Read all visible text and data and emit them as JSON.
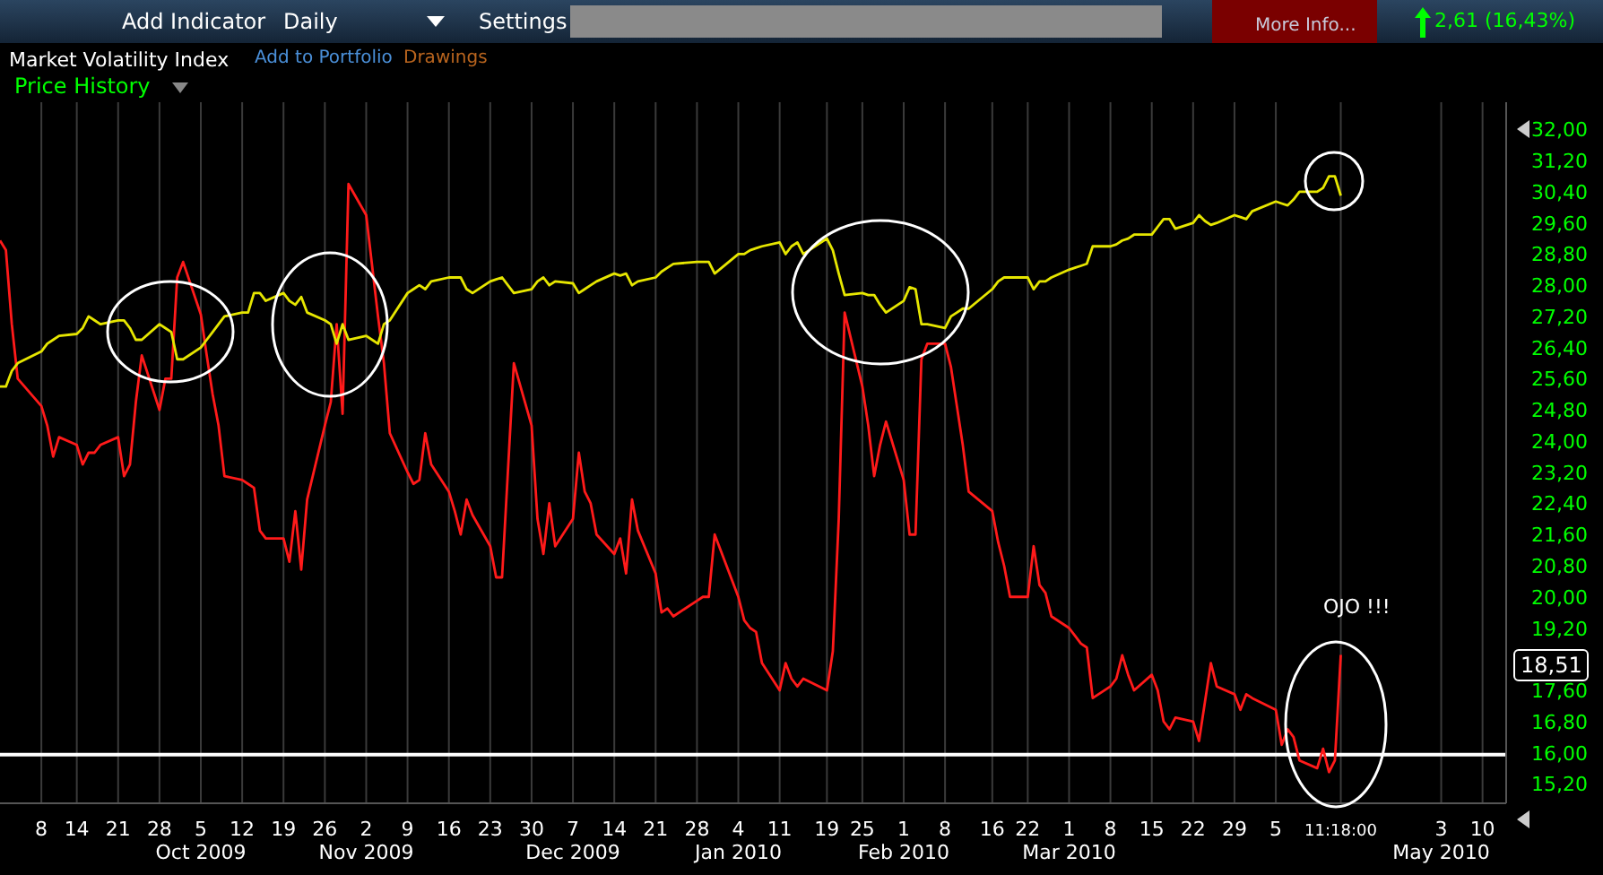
{
  "chart_data": {
    "type": "line",
    "title": "Market Volatility Index",
    "subtitle": "Price History",
    "x": [
      "2009-09-01",
      "2009-09-02",
      "2009-09-03",
      "2009-09-04",
      "2009-09-08",
      "2009-09-09",
      "2009-09-10",
      "2009-09-11",
      "2009-09-14",
      "2009-09-15",
      "2009-09-16",
      "2009-09-17",
      "2009-09-18",
      "2009-09-21",
      "2009-09-22",
      "2009-09-23",
      "2009-09-24",
      "2009-09-25",
      "2009-09-28",
      "2009-09-29",
      "2009-09-30",
      "2009-10-01",
      "2009-10-02",
      "2009-10-05",
      "2009-10-06",
      "2009-10-07",
      "2009-10-08",
      "2009-10-09",
      "2009-10-12",
      "2009-10-13",
      "2009-10-14",
      "2009-10-15",
      "2009-10-16",
      "2009-10-19",
      "2009-10-20",
      "2009-10-21",
      "2009-10-22",
      "2009-10-23",
      "2009-10-26",
      "2009-10-27",
      "2009-10-28",
      "2009-10-29",
      "2009-10-30",
      "2009-11-02",
      "2009-11-03",
      "2009-11-04",
      "2009-11-05",
      "2009-11-06",
      "2009-11-09",
      "2009-11-10",
      "2009-11-11",
      "2009-11-12",
      "2009-11-13",
      "2009-11-16",
      "2009-11-17",
      "2009-11-18",
      "2009-11-19",
      "2009-11-20",
      "2009-11-23",
      "2009-11-24",
      "2009-11-25",
      "2009-11-27",
      "2009-11-30",
      "2009-12-01",
      "2009-12-02",
      "2009-12-03",
      "2009-12-04",
      "2009-12-07",
      "2009-12-08",
      "2009-12-09",
      "2009-12-10",
      "2009-12-11",
      "2009-12-14",
      "2009-12-15",
      "2009-12-16",
      "2009-12-17",
      "2009-12-18",
      "2009-12-21",
      "2009-12-22",
      "2009-12-23",
      "2009-12-24",
      "2009-12-28",
      "2009-12-29",
      "2009-12-30",
      "2009-12-31",
      "2010-01-04",
      "2010-01-05",
      "2010-01-06",
      "2010-01-07",
      "2010-01-08",
      "2010-01-11",
      "2010-01-12",
      "2010-01-13",
      "2010-01-14",
      "2010-01-15",
      "2010-01-19",
      "2010-01-20",
      "2010-01-21",
      "2010-01-22",
      "2010-01-25",
      "2010-01-26",
      "2010-01-27",
      "2010-01-28",
      "2010-01-29",
      "2010-02-01",
      "2010-02-02",
      "2010-02-03",
      "2010-02-04",
      "2010-02-05",
      "2010-02-08",
      "2010-02-09",
      "2010-02-10",
      "2010-02-11",
      "2010-02-12",
      "2010-02-16",
      "2010-02-17",
      "2010-02-18",
      "2010-02-19",
      "2010-02-22",
      "2010-02-23",
      "2010-02-24",
      "2010-02-25",
      "2010-02-26",
      "2010-03-01",
      "2010-03-02",
      "2010-03-03",
      "2010-03-04",
      "2010-03-05",
      "2010-03-08",
      "2010-03-09",
      "2010-03-10",
      "2010-03-11",
      "2010-03-12",
      "2010-03-15",
      "2010-03-16",
      "2010-03-17",
      "2010-03-18",
      "2010-03-19",
      "2010-03-22",
      "2010-03-23",
      "2010-03-24",
      "2010-03-25",
      "2010-03-26",
      "2010-03-29",
      "2010-03-30",
      "2010-03-31",
      "2010-04-01",
      "2010-04-05",
      "2010-04-06",
      "2010-04-07",
      "2010-04-08",
      "2010-04-09",
      "2010-04-12",
      "2010-04-13",
      "2010-04-14",
      "2010-04-15",
      "2010-04-16"
    ],
    "series": [
      {
        "color": "#ff1a1a",
        "values": [
          29.15,
          28.9,
          27.0,
          25.6,
          24.9,
          24.4,
          23.6,
          24.1,
          23.9,
          23.4,
          23.7,
          23.7,
          23.9,
          24.1,
          23.1,
          23.4,
          25.0,
          26.2,
          24.8,
          25.6,
          25.6,
          28.2,
          28.6,
          27.25,
          26.2,
          25.2,
          24.4,
          23.1,
          23.0,
          22.9,
          22.8,
          21.7,
          21.5,
          21.5,
          20.9,
          22.2,
          20.7,
          22.5,
          24.4,
          25.0,
          27.0,
          24.7,
          30.6,
          29.8,
          28.5,
          27.2,
          26.0,
          24.2,
          23.2,
          22.9,
          23.0,
          24.2,
          23.4,
          22.7,
          22.2,
          21.6,
          22.5,
          22.1,
          21.3,
          20.5,
          20.5,
          26.0,
          24.4,
          22.0,
          21.1,
          22.4,
          21.3,
          22.0,
          23.7,
          22.7,
          22.4,
          21.6,
          21.1,
          21.5,
          20.6,
          22.5,
          21.7,
          20.6,
          19.6,
          19.7,
          19.5,
          19.9,
          20.0,
          20.0,
          21.6,
          20.0,
          19.4,
          19.2,
          19.1,
          18.3,
          17.6,
          18.3,
          17.9,
          17.7,
          17.9,
          17.6,
          18.6,
          22.0,
          27.3,
          25.4,
          24.4,
          23.1,
          23.9,
          24.5,
          23.0,
          21.6,
          21.6,
          26.1,
          26.5,
          26.5,
          25.9,
          24.9,
          23.9,
          22.7,
          22.2,
          21.4,
          20.8,
          20.0,
          20.0,
          21.3,
          20.3,
          20.1,
          19.5,
          19.2,
          19.0,
          18.8,
          18.7,
          17.4,
          17.7,
          17.9,
          18.5,
          18.0,
          17.6,
          18.0,
          17.6,
          16.8,
          16.6,
          16.9,
          16.8,
          16.3,
          17.3,
          18.3,
          17.7,
          17.5,
          17.1,
          17.5,
          17.4,
          17.1,
          16.2,
          16.6,
          16.4,
          15.8,
          15.6,
          16.1,
          15.5,
          15.8,
          18.51
        ]
      },
      {
        "color": "#e6e600",
        "values": [
          25.4,
          25.4,
          25.8,
          26.0,
          26.3,
          26.5,
          26.6,
          26.7,
          26.75,
          26.9,
          27.2,
          27.1,
          27.0,
          27.1,
          27.1,
          26.9,
          26.6,
          26.6,
          27.0,
          26.9,
          26.8,
          26.1,
          26.1,
          26.4,
          26.6,
          26.8,
          27.0,
          27.2,
          27.3,
          27.3,
          27.8,
          27.8,
          27.6,
          27.8,
          27.6,
          27.5,
          27.7,
          27.3,
          27.1,
          27.0,
          26.5,
          27.0,
          26.6,
          26.7,
          26.6,
          26.5,
          27.0,
          27.1,
          27.8,
          27.9,
          28.0,
          27.9,
          28.1,
          28.2,
          28.2,
          28.2,
          27.9,
          27.8,
          28.1,
          28.15,
          28.2,
          27.8,
          27.9,
          28.1,
          28.2,
          28.0,
          28.1,
          28.05,
          27.8,
          27.9,
          28.0,
          28.1,
          28.3,
          28.25,
          28.3,
          28.0,
          28.1,
          28.2,
          28.35,
          28.45,
          28.55,
          28.6,
          28.6,
          28.6,
          28.3,
          28.8,
          28.8,
          28.9,
          28.95,
          29.0,
          29.1,
          28.8,
          29.0,
          29.1,
          28.8,
          29.2,
          28.9,
          28.3,
          27.75,
          27.8,
          27.75,
          27.75,
          27.5,
          27.3,
          27.6,
          27.95,
          27.9,
          27.0,
          27.0,
          26.9,
          27.2,
          27.3,
          27.4,
          27.4,
          27.9,
          28.1,
          28.2,
          28.2,
          28.2,
          27.9,
          28.1,
          28.1,
          28.2,
          28.4,
          28.45,
          28.5,
          28.55,
          29.0,
          29.0,
          29.05,
          29.15,
          29.2,
          29.3,
          29.3,
          29.5,
          29.7,
          29.7,
          29.45,
          29.6,
          29.8,
          29.65,
          29.55,
          29.6,
          29.8,
          29.75,
          29.7,
          29.9,
          30.15,
          30.1,
          30.05,
          30.2,
          30.4,
          30.4,
          30.5,
          30.8,
          30.8,
          30.3
        ]
      }
    ],
    "xlim": [
      "2009-09-01",
      "2010-05-14"
    ],
    "xticks": [
      {
        "value": "2009-09-08",
        "label": "8"
      },
      {
        "value": "2009-09-14",
        "label": "14"
      },
      {
        "value": "2009-09-21",
        "label": "21"
      },
      {
        "value": "2009-09-28",
        "label": "28"
      },
      {
        "value": "2009-10-05",
        "label": "5\nOct 2009"
      },
      {
        "value": "2009-10-12",
        "label": "12"
      },
      {
        "value": "2009-10-19",
        "label": "19"
      },
      {
        "value": "2009-10-26",
        "label": "26"
      },
      {
        "value": "2009-11-02",
        "label": "2\nNov 2009"
      },
      {
        "value": "2009-11-09",
        "label": "9"
      },
      {
        "value": "2009-11-16",
        "label": "16"
      },
      {
        "value": "2009-11-23",
        "label": "23"
      },
      {
        "value": "2009-11-30",
        "label": "30"
      },
      {
        "value": "2009-12-07",
        "label": "7\nDec 2009"
      },
      {
        "value": "2009-12-14",
        "label": "14"
      },
      {
        "value": "2009-12-21",
        "label": "21"
      },
      {
        "value": "2009-12-28",
        "label": "28"
      },
      {
        "value": "2010-01-04",
        "label": "4\nJan 2010"
      },
      {
        "value": "2010-01-11",
        "label": "11"
      },
      {
        "value": "2010-01-19",
        "label": "19"
      },
      {
        "value": "2010-01-25",
        "label": "25"
      },
      {
        "value": "2010-02-01",
        "label": "1\nFeb 2010"
      },
      {
        "value": "2010-02-08",
        "label": "8"
      },
      {
        "value": "2010-02-16",
        "label": "16"
      },
      {
        "value": "2010-02-22",
        "label": "22"
      },
      {
        "value": "2010-03-01",
        "label": "1\nMar 2010"
      },
      {
        "value": "2010-03-08",
        "label": "8"
      },
      {
        "value": "2010-03-15",
        "label": "15"
      },
      {
        "value": "2010-03-22",
        "label": "22"
      },
      {
        "value": "2010-03-29",
        "label": "29"
      },
      {
        "value": "2010-04-05",
        "label": "5"
      },
      {
        "value": "2010-04-16",
        "label": "11:18:00"
      },
      {
        "value": "2010-05-03",
        "label": "3\nMay 2010"
      },
      {
        "value": "2010-05-10",
        "label": "10"
      }
    ],
    "ylim": [
      14.7,
      32.7
    ],
    "yticks": [
      {
        "value": 15.2,
        "label": "15,20"
      },
      {
        "value": 16,
        "label": "16,00"
      },
      {
        "value": 16.8,
        "label": "16,80"
      },
      {
        "value": 17.6,
        "label": "17,60"
      },
      {
        "value": 19.2,
        "label": "19,20"
      },
      {
        "value": 20,
        "label": "20,00"
      },
      {
        "value": 20.8,
        "label": "20,80"
      },
      {
        "value": 21.6,
        "label": "21,60"
      },
      {
        "value": 22.4,
        "label": "22,40"
      },
      {
        "value": 23.2,
        "label": "23,20"
      },
      {
        "value": 24,
        "label": "24,00"
      },
      {
        "value": 24.8,
        "label": "24,80"
      },
      {
        "value": 25.6,
        "label": "25,60"
      },
      {
        "value": 26.4,
        "label": "26,40"
      },
      {
        "value": 27.2,
        "label": "27,20"
      },
      {
        "value": 28,
        "label": "28,00"
      },
      {
        "value": 28.8,
        "label": "28,80"
      },
      {
        "value": 29.6,
        "label": "29,60"
      },
      {
        "value": 30.4,
        "label": "30,40"
      },
      {
        "value": 31.2,
        "label": "31,20"
      },
      {
        "value": 32,
        "label": "32,00"
      }
    ],
    "ref_lines": [
      {
        "axis": "y",
        "value": 15.95,
        "color": "#ffffff"
      }
    ],
    "annotations": [
      "Add Indicator",
      "Daily",
      "Settings",
      "Add to Portfolio",
      "Drawings",
      "More Info...",
      "2,61 (16,43%)",
      "OJO !!!",
      "18,51"
    ],
    "grid": true,
    "legend": false
  }
}
